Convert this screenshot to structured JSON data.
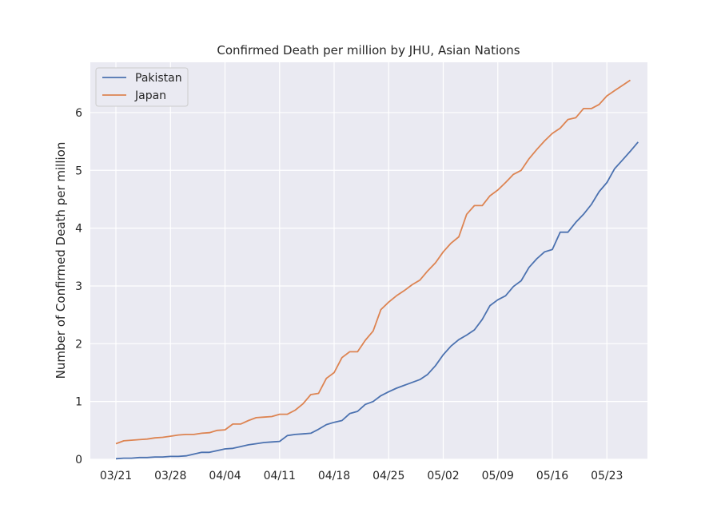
{
  "chart_data": {
    "type": "line",
    "title": "Confirmed Death per million by JHU, Asian Nations",
    "xlabel": "",
    "ylabel": "Number of Confirmed Death per million",
    "ylim": [
      0,
      6.87
    ],
    "x_ticks": [
      "03/21",
      "03/28",
      "04/04",
      "04/11",
      "04/18",
      "04/25",
      "05/02",
      "05/09",
      "05/16",
      "05/23"
    ],
    "y_ticks": [
      0,
      1,
      2,
      3,
      4,
      5,
      6
    ],
    "grid": true,
    "legend_position": "top-left",
    "colors": {
      "Pakistan": "#4c72b0",
      "Japan": "#dd8452",
      "background": "#eaeaf2",
      "grid": "#ffffff"
    },
    "series": [
      {
        "name": "Pakistan",
        "color": "#4c72b0",
        "values": [
          0.01,
          0.02,
          0.02,
          0.03,
          0.03,
          0.04,
          0.04,
          0.05,
          0.05,
          0.06,
          0.09,
          0.12,
          0.12,
          0.15,
          0.18,
          0.19,
          0.22,
          0.25,
          0.27,
          0.29,
          0.3,
          0.31,
          0.41,
          0.43,
          0.44,
          0.45,
          0.52,
          0.6,
          0.64,
          0.67,
          0.79,
          0.83,
          0.95,
          1.0,
          1.1,
          1.17,
          1.23,
          1.28,
          1.33,
          1.38,
          1.47,
          1.62,
          1.81,
          1.96,
          2.07,
          2.15,
          2.24,
          2.42,
          2.66,
          2.76,
          2.83,
          2.99,
          3.09,
          3.32,
          3.47,
          3.59,
          3.63,
          3.93,
          3.93,
          4.1,
          4.24,
          4.41,
          4.63,
          4.79,
          5.03,
          5.18,
          5.33,
          5.49
        ]
      },
      {
        "name": "Japan",
        "color": "#dd8452",
        "values": [
          0.27,
          0.32,
          0.33,
          0.34,
          0.35,
          0.37,
          0.38,
          0.4,
          0.42,
          0.43,
          0.43,
          0.45,
          0.46,
          0.5,
          0.51,
          0.61,
          0.61,
          0.67,
          0.72,
          0.73,
          0.74,
          0.78,
          0.78,
          0.85,
          0.96,
          1.12,
          1.14,
          1.4,
          1.5,
          1.76,
          1.86,
          1.86,
          2.06,
          2.22,
          2.59,
          2.72,
          2.83,
          2.92,
          3.02,
          3.1,
          3.26,
          3.4,
          3.59,
          3.74,
          3.85,
          4.24,
          4.39,
          4.39,
          4.56,
          4.66,
          4.79,
          4.93,
          5.0,
          5.2,
          5.36,
          5.51,
          5.64,
          5.73,
          5.88,
          5.91,
          6.07,
          6.07,
          6.14,
          6.29,
          6.38,
          6.47,
          6.56
        ]
      }
    ]
  }
}
